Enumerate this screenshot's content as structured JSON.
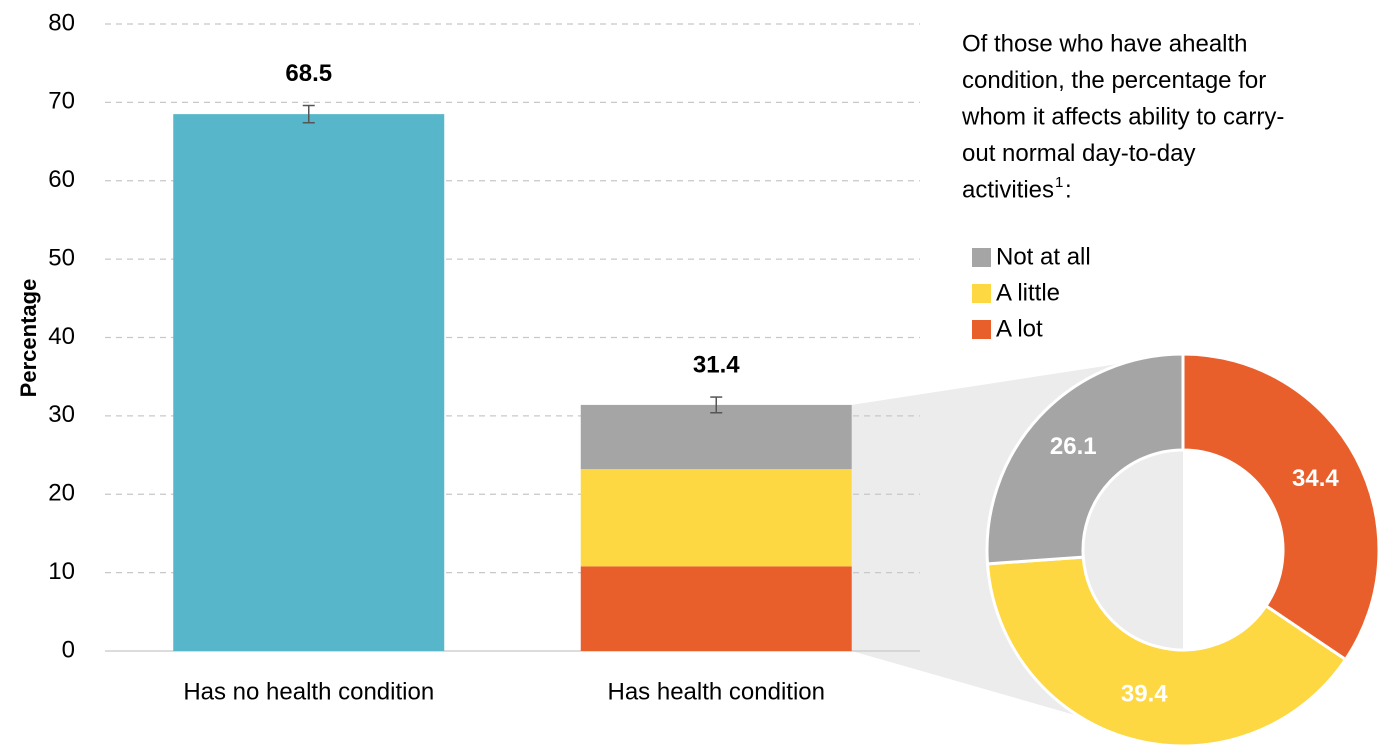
{
  "chart_data": [
    {
      "type": "bar",
      "ylabel": "Percentage",
      "categories": [
        "Has no health condition",
        "Has health condition"
      ],
      "values": [
        68.5,
        31.4
      ],
      "errors": [
        1.1,
        1.0
      ],
      "color": "#57b6c9",
      "stack_category": 1,
      "stack_values": [
        8.2,
        12.4,
        10.8
      ],
      "ylim": [
        0,
        80
      ],
      "yticks": [
        0,
        10,
        20,
        30,
        40,
        50,
        60,
        70,
        80
      ],
      "grid": true
    },
    {
      "type": "donut",
      "title_lines": [
        "Of those who have ahealth",
        "condition, the percentage for",
        "whom it affects ability to carry-",
        "out normal day-to-day",
        "activities"
      ],
      "footnote_mark": "1",
      "title_end": ":",
      "categories": [
        "Not at all",
        "A little",
        "A lot"
      ],
      "values": [
        26.1,
        39.4,
        34.4
      ],
      "colors": [
        "#a5a5a5",
        "#fdd843",
        "#e95f2c"
      ]
    }
  ]
}
